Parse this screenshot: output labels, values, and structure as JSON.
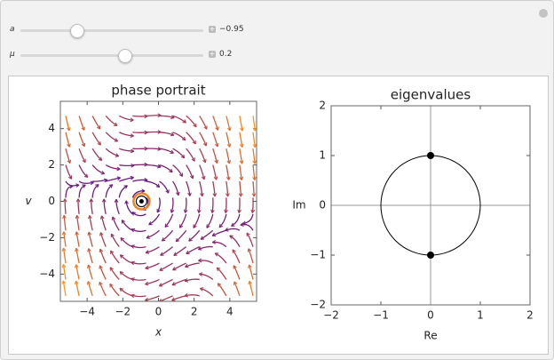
{
  "controls": [
    {
      "label": "a",
      "value": -0.95,
      "value_label": "−0.95"
    },
    {
      "label": "μ",
      "value": 0.2,
      "value_label": "0.2"
    }
  ],
  "chart_data": [
    {
      "type": "stream",
      "title": "phase portrait",
      "x_label": "x",
      "y_label": "v",
      "xlim": [
        -5.5,
        5.5
      ],
      "ylim": [
        -5.5,
        5.5
      ],
      "xticks": [
        {
          "value": -4,
          "label": "−4"
        },
        {
          "value": -2,
          "label": "−2"
        },
        0,
        2,
        4
      ],
      "yticks": [
        {
          "value": -4,
          "label": "−4"
        },
        {
          "value": -2,
          "label": "−2"
        },
        0,
        2,
        4
      ],
      "x": [
        -0.95
      ],
      "y": [
        0
      ],
      "color": "#000000"
    },
    {
      "type": "scatter",
      "title": "eigenvalues",
      "x_label": "Re",
      "y_label": "Im",
      "xlim": [
        -2,
        2
      ],
      "ylim": [
        -2,
        2
      ],
      "xticks": [
        {
          "value": -2,
          "label": "−2"
        },
        {
          "value": -1,
          "label": "−1"
        },
        0,
        1,
        2
      ],
      "yticks": [
        {
          "value": -2,
          "label": "−2"
        },
        {
          "value": -1,
          "label": "−1"
        },
        0,
        1,
        2
      ],
      "x": [
        0,
        0
      ],
      "y": [
        1,
        -1
      ],
      "color": "#000000"
    }
  ]
}
